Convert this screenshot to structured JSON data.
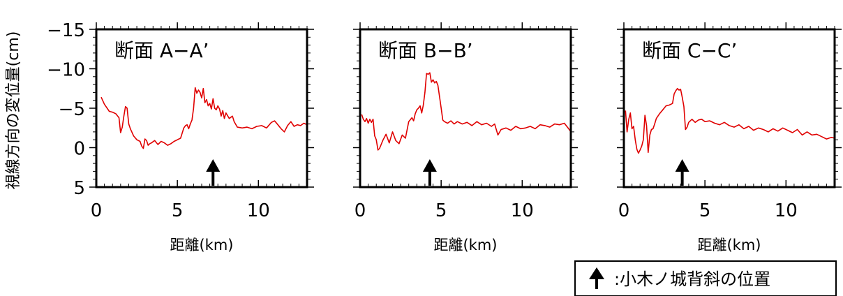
{
  "y_axis_label": "視線方向の変位量(cm)",
  "legend": {
    "arrow_name": "arrow-icon",
    "text": ":小木ノ城背斜の位置"
  },
  "chart_data": [
    {
      "type": "line",
      "title": "断面 A−A’",
      "xlabel": "距離(km)",
      "ylabel": "視線方向の変位量(cm)",
      "xlim": [
        0,
        13
      ],
      "ylim": [
        -15,
        5
      ],
      "y_inverted": true,
      "xticks": [
        0,
        5,
        10
      ],
      "yticks": [
        -15,
        -10,
        -5,
        0,
        5
      ],
      "color": "#e00000",
      "arrow_x": 7.2,
      "x": [
        0.3,
        0.5,
        0.8,
        1.0,
        1.2,
        1.4,
        1.5,
        1.6,
        1.7,
        1.8,
        1.9,
        2.0,
        2.1,
        2.3,
        2.5,
        2.7,
        2.8,
        2.9,
        3.0,
        3.1,
        3.2,
        3.3,
        3.4,
        3.6,
        3.8,
        4.0,
        4.2,
        4.4,
        4.6,
        4.8,
        5.0,
        5.2,
        5.4,
        5.5,
        5.6,
        5.7,
        5.8,
        5.9,
        6.0,
        6.1,
        6.2,
        6.3,
        6.4,
        6.5,
        6.6,
        6.7,
        6.8,
        6.9,
        7.0,
        7.1,
        7.2,
        7.3,
        7.4,
        7.5,
        7.6,
        7.7,
        7.8,
        7.9,
        8.0,
        8.2,
        8.4,
        8.5,
        8.7,
        9.0,
        9.3,
        9.6,
        9.9,
        10.2,
        10.5,
        10.8,
        11.0,
        11.2,
        11.4,
        11.6,
        11.8,
        12.0,
        12.2,
        12.4,
        12.6,
        12.8,
        13.0
      ],
      "y": [
        -6.4,
        -5.5,
        -4.6,
        -4.5,
        -4.3,
        -3.8,
        -1.9,
        -2.6,
        -4.0,
        -5.2,
        -5.0,
        -3.0,
        -2.4,
        -1.5,
        -1.0,
        -0.8,
        -0.2,
        0.1,
        -1.1,
        -0.9,
        -0.3,
        -0.5,
        -0.6,
        -0.9,
        -0.4,
        -0.8,
        -0.6,
        -0.3,
        -0.5,
        -0.8,
        -1.0,
        -1.2,
        -2.5,
        -2.8,
        -2.9,
        -2.4,
        -3.0,
        -3.5,
        -5.0,
        -7.6,
        -6.9,
        -7.3,
        -7.0,
        -6.3,
        -7.5,
        -5.7,
        -6.1,
        -5.3,
        -5.6,
        -4.9,
        -6.2,
        -5.0,
        -4.8,
        -5.3,
        -4.9,
        -4.0,
        -4.7,
        -3.7,
        -4.4,
        -3.7,
        -4.0,
        -3.3,
        -2.6,
        -2.5,
        -2.6,
        -2.4,
        -2.7,
        -2.8,
        -2.5,
        -3.2,
        -3.4,
        -2.9,
        -2.4,
        -2.0,
        -2.8,
        -3.3,
        -2.7,
        -2.9,
        -2.8,
        -3.1,
        -2.9
      ]
    },
    {
      "type": "line",
      "title": "断面 B−B’",
      "xlabel": "距離(km)",
      "ylabel": "",
      "xlim": [
        0,
        13
      ],
      "ylim": [
        -15,
        5
      ],
      "y_inverted": true,
      "xticks": [
        0,
        5,
        10
      ],
      "yticks": [
        -15,
        -10,
        -5,
        0,
        5
      ],
      "color": "#e00000",
      "arrow_x": 4.3,
      "x": [
        0.1,
        0.2,
        0.3,
        0.4,
        0.5,
        0.6,
        0.7,
        0.8,
        0.9,
        1.0,
        1.1,
        1.2,
        1.3,
        1.4,
        1.6,
        1.8,
        2.0,
        2.2,
        2.4,
        2.6,
        2.8,
        3.0,
        3.2,
        3.3,
        3.4,
        3.5,
        3.6,
        3.7,
        3.8,
        3.9,
        4.0,
        4.1,
        4.2,
        4.3,
        4.4,
        4.5,
        4.6,
        4.7,
        4.8,
        4.9,
        5.0,
        5.1,
        5.2,
        5.4,
        5.6,
        5.8,
        6.0,
        6.3,
        6.6,
        6.9,
        7.2,
        7.5,
        7.8,
        8.1,
        8.3,
        8.5,
        8.7,
        9.0,
        9.3,
        9.6,
        9.9,
        10.2,
        10.5,
        10.8,
        11.1,
        11.4,
        11.7,
        12.0,
        12.3,
        12.6,
        12.9,
        13.0
      ],
      "y": [
        -4.2,
        -3.6,
        -3.3,
        -3.7,
        -3.1,
        -3.6,
        -3.2,
        -3.6,
        -1.5,
        -1.0,
        0.3,
        0.1,
        -0.4,
        -0.9,
        -1.7,
        -0.6,
        -2.0,
        -0.9,
        -0.5,
        -1.6,
        -1.2,
        -3.3,
        -3.8,
        -3.4,
        -4.3,
        -4.8,
        -5.0,
        -5.3,
        -4.4,
        -5.4,
        -7.0,
        -9.4,
        -9.3,
        -9.5,
        -8.3,
        -8.6,
        -8.2,
        -8.4,
        -7.9,
        -6.5,
        -5.0,
        -3.5,
        -3.3,
        -3.1,
        -3.4,
        -3.0,
        -3.3,
        -3.0,
        -3.2,
        -2.8,
        -3.3,
        -2.9,
        -3.1,
        -2.7,
        -3.0,
        -1.6,
        -2.3,
        -2.5,
        -2.2,
        -2.7,
        -2.4,
        -2.5,
        -2.7,
        -2.4,
        -2.9,
        -2.8,
        -2.6,
        -3.0,
        -2.9,
        -3.1,
        -2.3,
        -2.0
      ]
    },
    {
      "type": "line",
      "title": "断面 C−C’",
      "xlabel": "距離(km)",
      "ylabel": "",
      "xlim": [
        0,
        13
      ],
      "ylim": [
        -15,
        5
      ],
      "y_inverted": true,
      "xticks": [
        0,
        5,
        10
      ],
      "yticks": [
        -15,
        -10,
        -5,
        0,
        5
      ],
      "color": "#e00000",
      "arrow_x": 3.6,
      "x": [
        0.1,
        0.2,
        0.3,
        0.4,
        0.5,
        0.6,
        0.7,
        0.8,
        0.9,
        1.0,
        1.1,
        1.2,
        1.3,
        1.4,
        1.5,
        1.6,
        1.7,
        1.8,
        1.9,
        2.0,
        2.2,
        2.4,
        2.6,
        2.8,
        3.0,
        3.1,
        3.2,
        3.3,
        3.4,
        3.5,
        3.6,
        3.7,
        3.8,
        3.9,
        4.0,
        4.1,
        4.2,
        4.4,
        4.6,
        4.8,
        5.0,
        5.3,
        5.6,
        5.9,
        6.2,
        6.5,
        6.8,
        7.1,
        7.4,
        7.7,
        8.0,
        8.3,
        8.6,
        8.9,
        9.2,
        9.5,
        9.8,
        10.1,
        10.4,
        10.7,
        11.0,
        11.3,
        11.6,
        11.9,
        12.2,
        12.5,
        12.8,
        13.0
      ],
      "y": [
        -4.7,
        -2.0,
        -3.6,
        -4.4,
        -2.4,
        -2.7,
        -1.0,
        0.2,
        0.7,
        0.3,
        -0.2,
        -1.0,
        -4.1,
        -2.8,
        0.6,
        -1.6,
        -2.3,
        -2.4,
        -3.0,
        -3.7,
        -4.3,
        -4.8,
        -5.3,
        -5.4,
        -5.6,
        -6.8,
        -7.2,
        -7.5,
        -7.3,
        -7.4,
        -6.4,
        -5.2,
        -2.3,
        -2.6,
        -3.2,
        -3.4,
        -3.6,
        -3.2,
        -3.5,
        -3.6,
        -3.3,
        -3.4,
        -3.1,
        -2.9,
        -3.2,
        -2.8,
        -2.6,
        -2.9,
        -2.4,
        -2.7,
        -2.2,
        -2.5,
        -2.3,
        -2.0,
        -2.4,
        -2.1,
        -2.5,
        -2.2,
        -1.9,
        -2.3,
        -1.6,
        -2.0,
        -1.6,
        -1.7,
        -1.4,
        -1.1,
        -1.3,
        -1.2
      ]
    }
  ]
}
